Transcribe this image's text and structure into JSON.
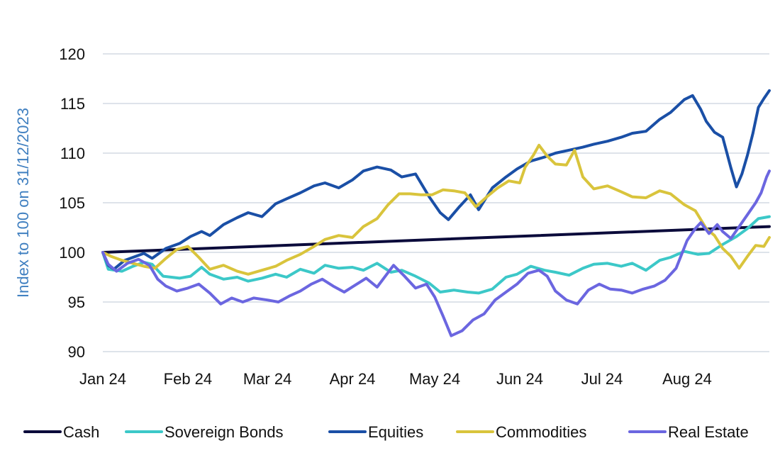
{
  "chart_data": {
    "type": "line",
    "title": "",
    "xlabel": "",
    "ylabel": "Index to 100 on 31/12/2023",
    "ylim": [
      90,
      120
    ],
    "yticks": [
      90,
      95,
      100,
      105,
      110,
      115,
      120
    ],
    "x_range": [
      "2024-01-01",
      "2024-08-31"
    ],
    "x_ticks": [
      {
        "date": "2024-01-01",
        "label": "Jan 24"
      },
      {
        "date": "2024-02-01",
        "label": "Feb 24"
      },
      {
        "date": "2024-03-01",
        "label": "Mar 24"
      },
      {
        "date": "2024-04-01",
        "label": "Apr 24"
      },
      {
        "date": "2024-05-01",
        "label": "May 24"
      },
      {
        "date": "2024-06-01",
        "label": "Jun 24"
      },
      {
        "date": "2024-07-01",
        "label": "Jul 24"
      },
      {
        "date": "2024-08-01",
        "label": "Aug 24"
      }
    ],
    "grid": true,
    "legend_position": "bottom",
    "series": [
      {
        "name": "Cash",
        "color": "#0b0b3b",
        "points": [
          [
            "2024-01-01",
            100.0
          ],
          [
            "2024-08-31",
            102.6
          ]
        ]
      },
      {
        "name": "Sovereign Bonds",
        "color": "#3cc8c8",
        "points": [
          [
            "2024-01-01",
            100.0
          ],
          [
            "2024-01-03",
            98.3
          ],
          [
            "2024-01-08",
            98.1
          ],
          [
            "2024-01-12",
            98.6
          ],
          [
            "2024-01-16",
            99.0
          ],
          [
            "2024-01-19",
            98.8
          ],
          [
            "2024-01-23",
            97.6
          ],
          [
            "2024-01-29",
            97.4
          ],
          [
            "2024-02-02",
            97.6
          ],
          [
            "2024-02-06",
            98.5
          ],
          [
            "2024-02-09",
            97.8
          ],
          [
            "2024-02-14",
            97.3
          ],
          [
            "2024-02-19",
            97.5
          ],
          [
            "2024-02-23",
            97.1
          ],
          [
            "2024-02-28",
            97.4
          ],
          [
            "2024-03-04",
            97.8
          ],
          [
            "2024-03-08",
            97.5
          ],
          [
            "2024-03-13",
            98.3
          ],
          [
            "2024-03-18",
            97.9
          ],
          [
            "2024-03-22",
            98.7
          ],
          [
            "2024-03-27",
            98.4
          ],
          [
            "2024-04-01",
            98.5
          ],
          [
            "2024-04-05",
            98.2
          ],
          [
            "2024-04-10",
            98.9
          ],
          [
            "2024-04-15",
            98.0
          ],
          [
            "2024-04-19",
            98.2
          ],
          [
            "2024-04-24",
            97.6
          ],
          [
            "2024-04-29",
            96.9
          ],
          [
            "2024-05-03",
            96.0
          ],
          [
            "2024-05-08",
            96.2
          ],
          [
            "2024-05-13",
            96.0
          ],
          [
            "2024-05-17",
            95.9
          ],
          [
            "2024-05-22",
            96.3
          ],
          [
            "2024-05-27",
            97.5
          ],
          [
            "2024-05-31",
            97.8
          ],
          [
            "2024-06-05",
            98.6
          ],
          [
            "2024-06-10",
            98.2
          ],
          [
            "2024-06-14",
            98.0
          ],
          [
            "2024-06-19",
            97.7
          ],
          [
            "2024-06-24",
            98.4
          ],
          [
            "2024-06-28",
            98.8
          ],
          [
            "2024-07-03",
            98.9
          ],
          [
            "2024-07-08",
            98.6
          ],
          [
            "2024-07-12",
            98.9
          ],
          [
            "2024-07-17",
            98.2
          ],
          [
            "2024-07-22",
            99.2
          ],
          [
            "2024-07-26",
            99.5
          ],
          [
            "2024-07-31",
            100.1
          ],
          [
            "2024-08-05",
            99.8
          ],
          [
            "2024-08-09",
            99.9
          ],
          [
            "2024-08-14",
            100.8
          ],
          [
            "2024-08-19",
            101.6
          ],
          [
            "2024-08-23",
            102.4
          ],
          [
            "2024-08-27",
            103.4
          ],
          [
            "2024-08-31",
            103.6
          ]
        ]
      },
      {
        "name": "Equities",
        "color": "#1a4fa6",
        "points": [
          [
            "2024-01-01",
            100.0
          ],
          [
            "2024-01-03",
            98.7
          ],
          [
            "2024-01-05",
            98.3
          ],
          [
            "2024-01-09",
            99.2
          ],
          [
            "2024-01-12",
            99.5
          ],
          [
            "2024-01-16",
            99.9
          ],
          [
            "2024-01-19",
            99.4
          ],
          [
            "2024-01-24",
            100.4
          ],
          [
            "2024-01-29",
            100.9
          ],
          [
            "2024-02-02",
            101.6
          ],
          [
            "2024-02-06",
            102.1
          ],
          [
            "2024-02-09",
            101.7
          ],
          [
            "2024-02-14",
            102.8
          ],
          [
            "2024-02-19",
            103.5
          ],
          [
            "2024-02-23",
            104.0
          ],
          [
            "2024-02-28",
            103.6
          ],
          [
            "2024-03-04",
            104.9
          ],
          [
            "2024-03-08",
            105.4
          ],
          [
            "2024-03-13",
            106.0
          ],
          [
            "2024-03-18",
            106.7
          ],
          [
            "2024-03-22",
            107.0
          ],
          [
            "2024-03-27",
            106.5
          ],
          [
            "2024-04-01",
            107.3
          ],
          [
            "2024-04-05",
            108.2
          ],
          [
            "2024-04-10",
            108.6
          ],
          [
            "2024-04-15",
            108.3
          ],
          [
            "2024-04-19",
            107.6
          ],
          [
            "2024-04-24",
            107.9
          ],
          [
            "2024-04-29",
            105.6
          ],
          [
            "2024-05-03",
            104.0
          ],
          [
            "2024-05-06",
            103.3
          ],
          [
            "2024-05-10",
            104.6
          ],
          [
            "2024-05-14",
            105.8
          ],
          [
            "2024-05-17",
            104.3
          ],
          [
            "2024-05-22",
            106.5
          ],
          [
            "2024-05-27",
            107.6
          ],
          [
            "2024-05-31",
            108.4
          ],
          [
            "2024-06-05",
            109.2
          ],
          [
            "2024-06-10",
            109.6
          ],
          [
            "2024-06-14",
            110.0
          ],
          [
            "2024-06-19",
            110.3
          ],
          [
            "2024-06-24",
            110.6
          ],
          [
            "2024-06-28",
            110.9
          ],
          [
            "2024-07-03",
            111.2
          ],
          [
            "2024-07-08",
            111.6
          ],
          [
            "2024-07-12",
            112.0
          ],
          [
            "2024-07-17",
            112.2
          ],
          [
            "2024-07-22",
            113.4
          ],
          [
            "2024-07-26",
            114.1
          ],
          [
            "2024-07-31",
            115.4
          ],
          [
            "2024-08-03",
            115.8
          ],
          [
            "2024-08-06",
            114.4
          ],
          [
            "2024-08-08",
            113.2
          ],
          [
            "2024-08-11",
            112.1
          ],
          [
            "2024-08-14",
            111.6
          ],
          [
            "2024-08-17",
            108.5
          ],
          [
            "2024-08-19",
            106.6
          ],
          [
            "2024-08-21",
            107.9
          ],
          [
            "2024-08-23",
            109.8
          ],
          [
            "2024-08-25",
            112.0
          ],
          [
            "2024-08-27",
            114.6
          ],
          [
            "2024-08-29",
            115.5
          ],
          [
            "2024-08-31",
            116.3
          ]
        ]
      },
      {
        "name": "Commodities",
        "color": "#d9c43c",
        "points": [
          [
            "2024-01-01",
            100.0
          ],
          [
            "2024-01-04",
            99.6
          ],
          [
            "2024-01-08",
            99.2
          ],
          [
            "2024-01-12",
            98.9
          ],
          [
            "2024-01-16",
            98.6
          ],
          [
            "2024-01-20",
            98.4
          ],
          [
            "2024-01-24",
            99.4
          ],
          [
            "2024-01-28",
            100.3
          ],
          [
            "2024-02-01",
            100.6
          ],
          [
            "2024-02-05",
            99.5
          ],
          [
            "2024-02-09",
            98.3
          ],
          [
            "2024-02-14",
            98.7
          ],
          [
            "2024-02-19",
            98.1
          ],
          [
            "2024-02-23",
            97.8
          ],
          [
            "2024-02-28",
            98.2
          ],
          [
            "2024-03-04",
            98.6
          ],
          [
            "2024-03-08",
            99.2
          ],
          [
            "2024-03-13",
            99.8
          ],
          [
            "2024-03-18",
            100.6
          ],
          [
            "2024-03-22",
            101.3
          ],
          [
            "2024-03-27",
            101.7
          ],
          [
            "2024-04-01",
            101.5
          ],
          [
            "2024-04-05",
            102.6
          ],
          [
            "2024-04-10",
            103.4
          ],
          [
            "2024-04-14",
            104.8
          ],
          [
            "2024-04-18",
            105.9
          ],
          [
            "2024-04-22",
            105.9
          ],
          [
            "2024-04-26",
            105.8
          ],
          [
            "2024-04-30",
            105.8
          ],
          [
            "2024-05-04",
            106.3
          ],
          [
            "2024-05-08",
            106.2
          ],
          [
            "2024-05-12",
            106.0
          ],
          [
            "2024-05-16",
            104.6
          ],
          [
            "2024-05-20",
            105.6
          ],
          [
            "2024-05-24",
            106.5
          ],
          [
            "2024-05-28",
            107.2
          ],
          [
            "2024-06-01",
            107.0
          ],
          [
            "2024-06-03",
            108.6
          ],
          [
            "2024-06-06",
            109.8
          ],
          [
            "2024-06-08",
            110.8
          ],
          [
            "2024-06-11",
            109.7
          ],
          [
            "2024-06-14",
            108.9
          ],
          [
            "2024-06-18",
            108.8
          ],
          [
            "2024-06-21",
            110.3
          ],
          [
            "2024-06-24",
            107.6
          ],
          [
            "2024-06-28",
            106.4
          ],
          [
            "2024-07-03",
            106.7
          ],
          [
            "2024-07-08",
            106.1
          ],
          [
            "2024-07-12",
            105.6
          ],
          [
            "2024-07-17",
            105.5
          ],
          [
            "2024-07-22",
            106.2
          ],
          [
            "2024-07-26",
            105.9
          ],
          [
            "2024-07-31",
            104.8
          ],
          [
            "2024-08-04",
            104.2
          ],
          [
            "2024-08-08",
            102.4
          ],
          [
            "2024-08-11",
            101.7
          ],
          [
            "2024-08-14",
            100.4
          ],
          [
            "2024-08-17",
            99.6
          ],
          [
            "2024-08-20",
            98.4
          ],
          [
            "2024-08-23",
            99.6
          ],
          [
            "2024-08-26",
            100.7
          ],
          [
            "2024-08-29",
            100.6
          ],
          [
            "2024-08-31",
            101.5
          ]
        ]
      },
      {
        "name": "Real Estate",
        "color": "#6b66e0",
        "points": [
          [
            "2024-01-01",
            100.0
          ],
          [
            "2024-01-03",
            98.8
          ],
          [
            "2024-01-06",
            98.1
          ],
          [
            "2024-01-10",
            98.9
          ],
          [
            "2024-01-14",
            99.3
          ],
          [
            "2024-01-18",
            98.7
          ],
          [
            "2024-01-21",
            97.3
          ],
          [
            "2024-01-24",
            96.6
          ],
          [
            "2024-01-28",
            96.1
          ],
          [
            "2024-02-01",
            96.4
          ],
          [
            "2024-02-05",
            96.8
          ],
          [
            "2024-02-09",
            95.9
          ],
          [
            "2024-02-13",
            94.8
          ],
          [
            "2024-02-17",
            95.4
          ],
          [
            "2024-02-21",
            95.0
          ],
          [
            "2024-02-25",
            95.4
          ],
          [
            "2024-03-01",
            95.2
          ],
          [
            "2024-03-05",
            95.0
          ],
          [
            "2024-03-09",
            95.6
          ],
          [
            "2024-03-13",
            96.1
          ],
          [
            "2024-03-17",
            96.8
          ],
          [
            "2024-03-21",
            97.3
          ],
          [
            "2024-03-25",
            96.6
          ],
          [
            "2024-03-29",
            96.0
          ],
          [
            "2024-04-02",
            96.7
          ],
          [
            "2024-04-06",
            97.4
          ],
          [
            "2024-04-10",
            96.5
          ],
          [
            "2024-04-13",
            97.6
          ],
          [
            "2024-04-16",
            98.7
          ],
          [
            "2024-04-20",
            97.6
          ],
          [
            "2024-04-24",
            96.4
          ],
          [
            "2024-04-28",
            96.8
          ],
          [
            "2024-05-01",
            95.5
          ],
          [
            "2024-05-04",
            93.6
          ],
          [
            "2024-05-07",
            91.6
          ],
          [
            "2024-05-11",
            92.1
          ],
          [
            "2024-05-15",
            93.2
          ],
          [
            "2024-05-19",
            93.8
          ],
          [
            "2024-05-23",
            95.2
          ],
          [
            "2024-05-27",
            96.0
          ],
          [
            "2024-05-31",
            96.8
          ],
          [
            "2024-06-04",
            97.9
          ],
          [
            "2024-06-08",
            98.2
          ],
          [
            "2024-06-11",
            97.6
          ],
          [
            "2024-06-14",
            96.1
          ],
          [
            "2024-06-18",
            95.2
          ],
          [
            "2024-06-22",
            94.8
          ],
          [
            "2024-06-26",
            96.2
          ],
          [
            "2024-06-30",
            96.8
          ],
          [
            "2024-07-04",
            96.3
          ],
          [
            "2024-07-08",
            96.2
          ],
          [
            "2024-07-12",
            95.9
          ],
          [
            "2024-07-16",
            96.3
          ],
          [
            "2024-07-20",
            96.6
          ],
          [
            "2024-07-24",
            97.2
          ],
          [
            "2024-07-28",
            98.4
          ],
          [
            "2024-08-01",
            101.2
          ],
          [
            "2024-08-04",
            102.4
          ],
          [
            "2024-08-06",
            103.0
          ],
          [
            "2024-08-09",
            101.9
          ],
          [
            "2024-08-12",
            102.8
          ],
          [
            "2024-08-14",
            102.1
          ],
          [
            "2024-08-17",
            101.4
          ],
          [
            "2024-08-20",
            102.6
          ],
          [
            "2024-08-23",
            103.8
          ],
          [
            "2024-08-26",
            105.0
          ],
          [
            "2024-08-28",
            106.0
          ],
          [
            "2024-08-30",
            107.6
          ],
          [
            "2024-08-31",
            108.2
          ]
        ]
      }
    ]
  }
}
